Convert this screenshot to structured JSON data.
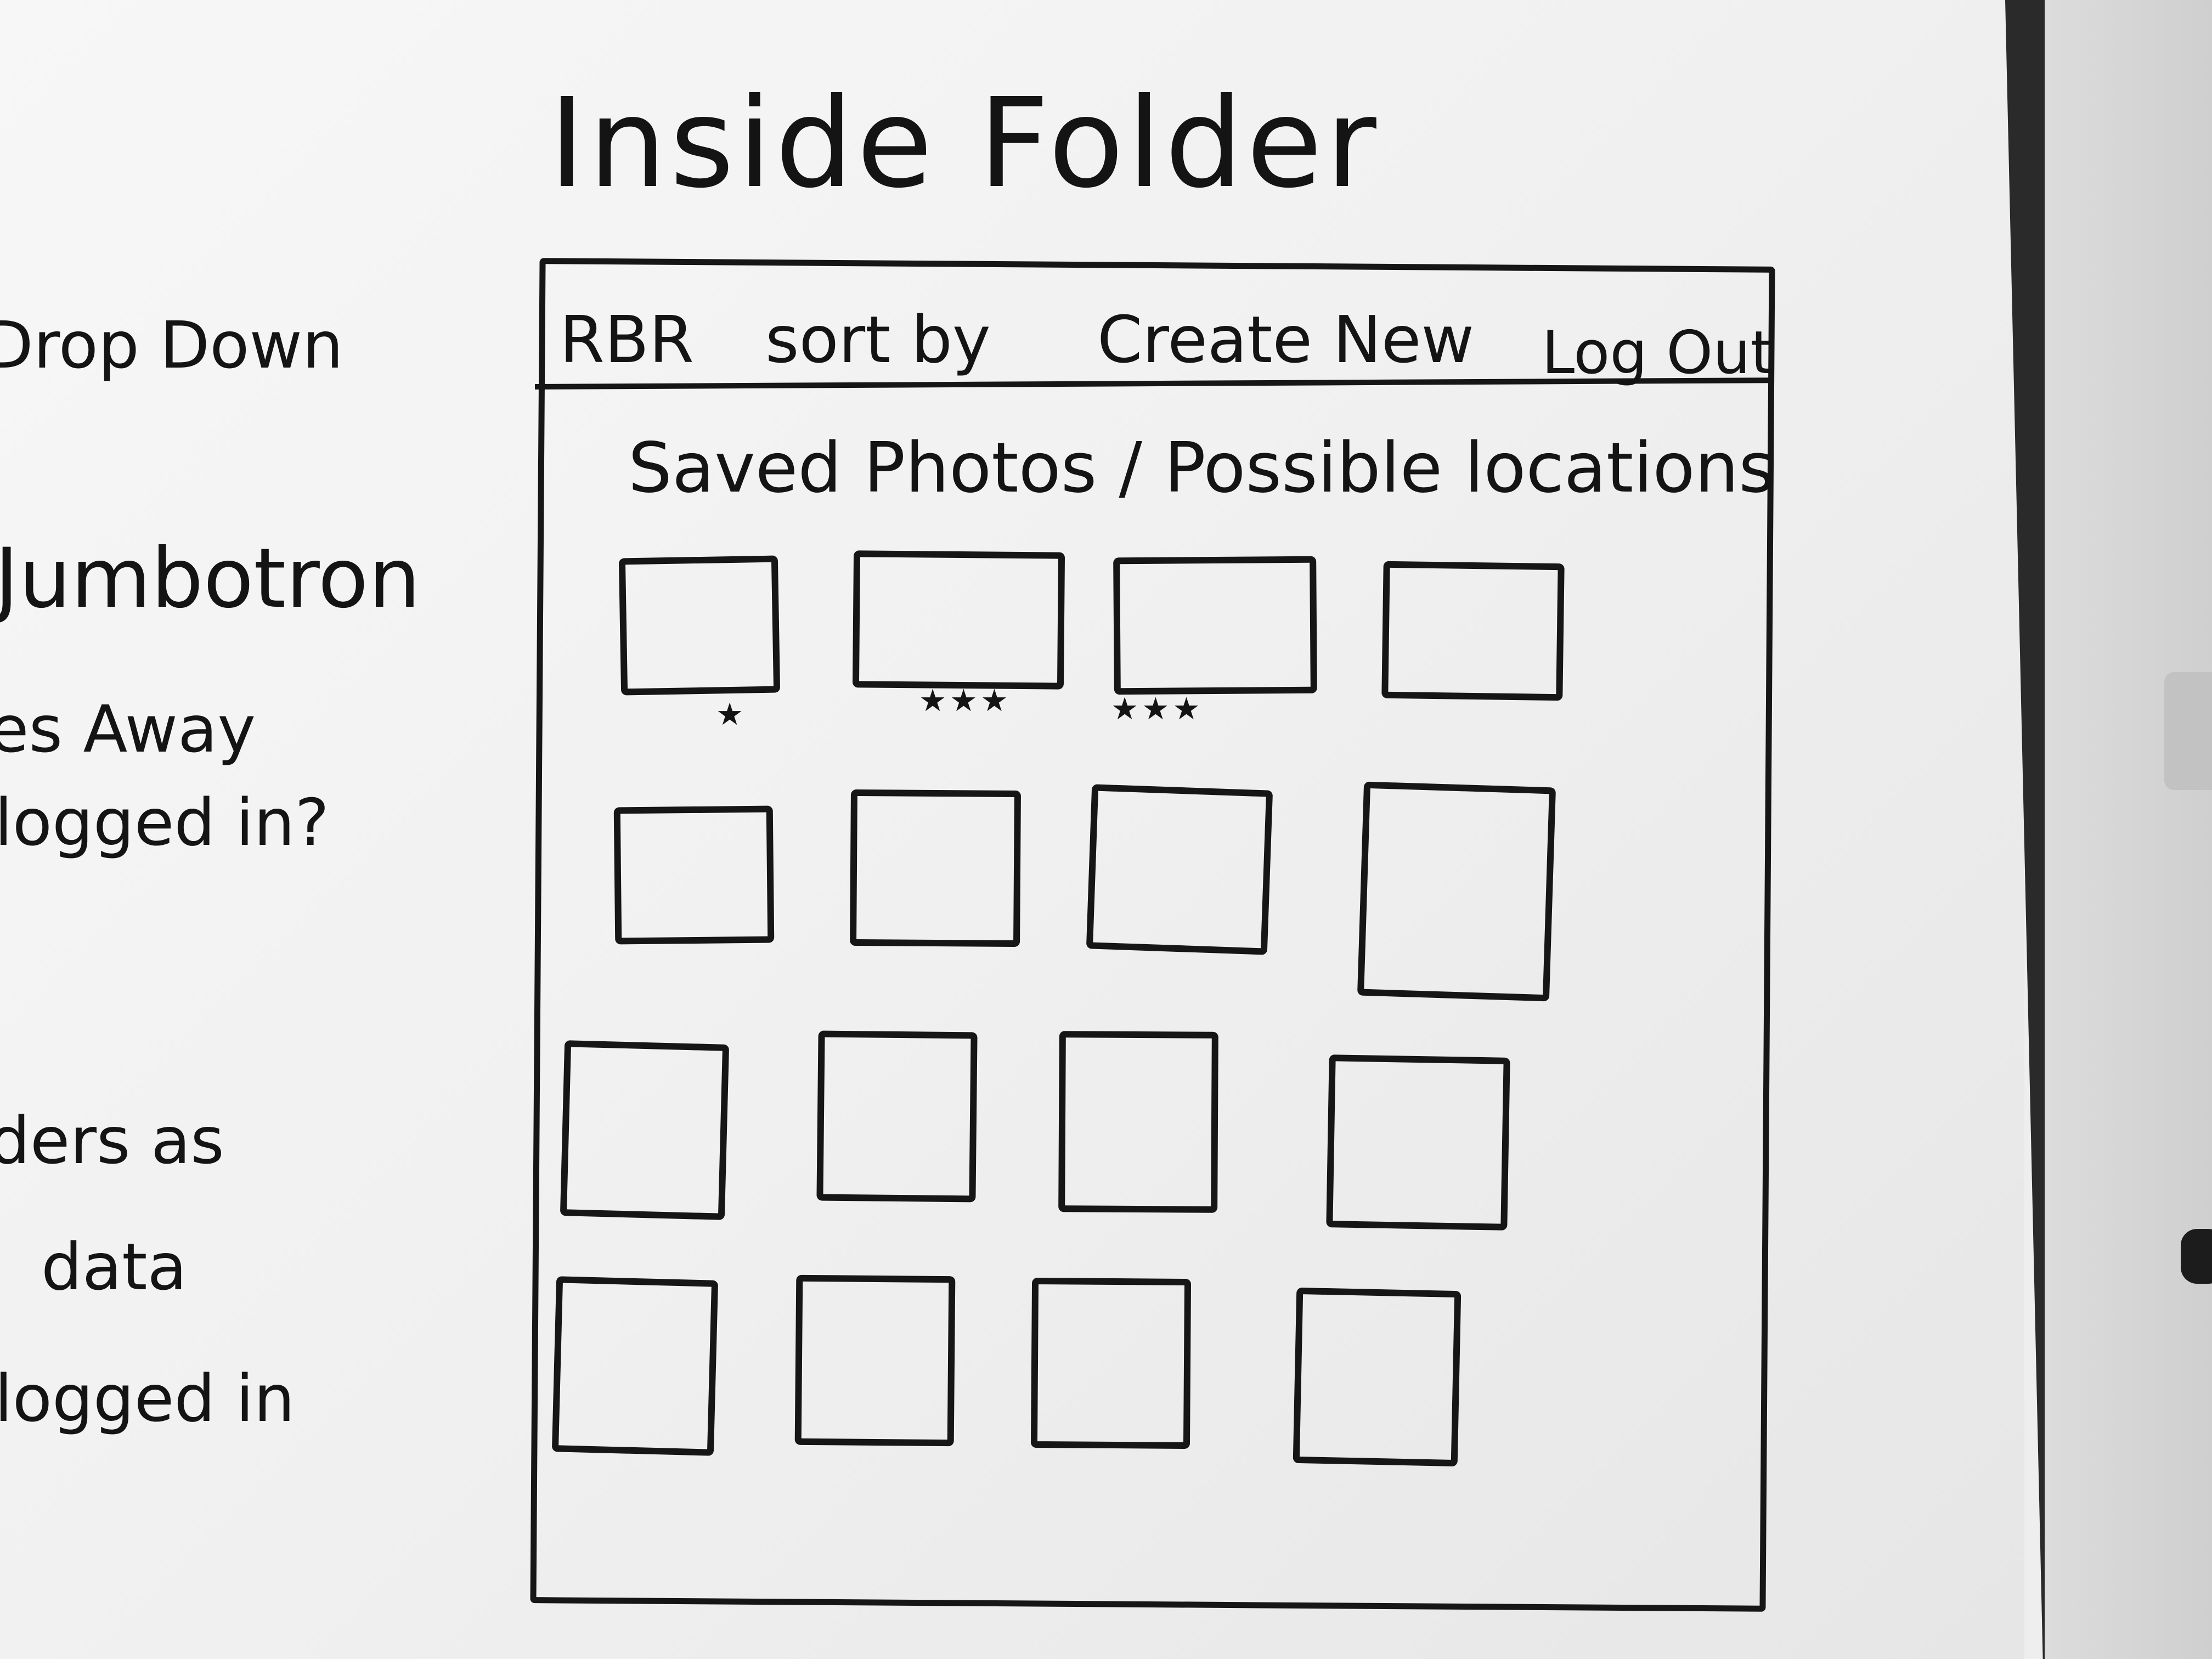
{
  "title": "Inside Folder",
  "side_notes": [
    "Drop Down",
    "Jumbotron",
    "es Away",
    "logged in?",
    "ders as",
    "data",
    "logged in"
  ],
  "nav": {
    "brand": "RBR",
    "sort": "sort by",
    "create": "Create New",
    "logout": "Log Out"
  },
  "heading": "Saved Photos / Possible locations",
  "grid": {
    "rows": 4,
    "cols": 4
  },
  "ratings": [
    {
      "stars": 1
    },
    {
      "stars": 3
    },
    {
      "stars": 3
    }
  ],
  "star_glyph": "★",
  "colors": {
    "ink": "#161616",
    "board": "#f4f4f4"
  }
}
